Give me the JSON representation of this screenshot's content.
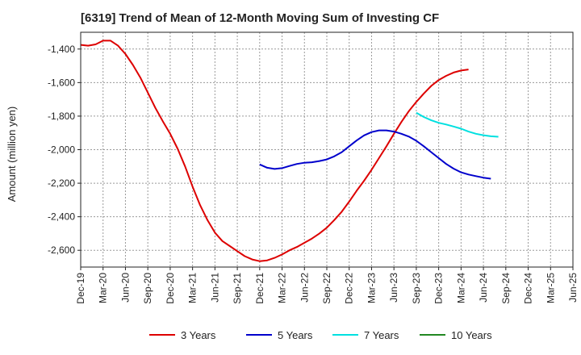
{
  "chart_data": {
    "type": "line",
    "title": "[6319]  Trend of Mean of 12-Month Moving Sum of Investing CF",
    "xlabel": "",
    "ylabel": "Amount (million yen)",
    "ylim": [
      -2700,
      -1300
    ],
    "yticks": [
      -1400,
      -1600,
      -1800,
      -2000,
      -2200,
      -2400,
      -2600
    ],
    "ytick_labels": [
      "-1,400",
      "-1,600",
      "-1,800",
      "-2,000",
      "-2,200",
      "-2,400",
      "-2,600"
    ],
    "xlim": [
      0,
      66
    ],
    "xticks": [
      0,
      3,
      6,
      9,
      12,
      15,
      18,
      21,
      24,
      27,
      30,
      33,
      36,
      39,
      42,
      45,
      48,
      51,
      54,
      57,
      60,
      63,
      66
    ],
    "xtick_labels": [
      "Dec-19",
      "Mar-20",
      "Jun-20",
      "Sep-20",
      "Dec-20",
      "Mar-21",
      "Jun-21",
      "Sep-21",
      "Dec-21",
      "Mar-22",
      "Jun-22",
      "Sep-22",
      "Dec-22",
      "Mar-23",
      "Jun-23",
      "Sep-23",
      "Dec-23",
      "Mar-24",
      "Jun-24",
      "Sep-24",
      "Dec-24",
      "Mar-25",
      "Jun-25"
    ],
    "grid": true,
    "legend_position": "bottom",
    "series": [
      {
        "name": "3 Years",
        "color": "#dd0000",
        "start": 0,
        "values": [
          -1375,
          -1380,
          -1372,
          -1350,
          -1350,
          -1380,
          -1430,
          -1495,
          -1570,
          -1660,
          -1750,
          -1830,
          -1905,
          -1995,
          -2100,
          -2220,
          -2330,
          -2420,
          -2495,
          -2545,
          -2575,
          -2605,
          -2635,
          -2655,
          -2665,
          -2660,
          -2645,
          -2625,
          -2600,
          -2580,
          -2555,
          -2530,
          -2500,
          -2465,
          -2420,
          -2370,
          -2310,
          -2245,
          -2185,
          -2120,
          -2050,
          -1980,
          -1905,
          -1835,
          -1770,
          -1715,
          -1665,
          -1620,
          -1585,
          -1560,
          -1540,
          -1528,
          -1522
        ]
      },
      {
        "name": "5 Years",
        "color": "#0000cc",
        "start": 24,
        "values": [
          -2088,
          -2108,
          -2115,
          -2110,
          -2097,
          -2085,
          -2078,
          -2075,
          -2068,
          -2058,
          -2040,
          -2015,
          -1980,
          -1945,
          -1915,
          -1895,
          -1885,
          -1885,
          -1892,
          -1905,
          -1922,
          -1947,
          -1980,
          -2015,
          -2050,
          -2085,
          -2113,
          -2135,
          -2148,
          -2158,
          -2167,
          -2173
        ]
      },
      {
        "name": "7 Years",
        "color": "#00e0e0",
        "start": 45,
        "values": [
          -1780,
          -1805,
          -1825,
          -1840,
          -1850,
          -1862,
          -1875,
          -1892,
          -1905,
          -1914,
          -1920,
          -1923
        ]
      },
      {
        "name": "10 Years",
        "color": "#228822",
        "start": null,
        "values": []
      }
    ]
  }
}
